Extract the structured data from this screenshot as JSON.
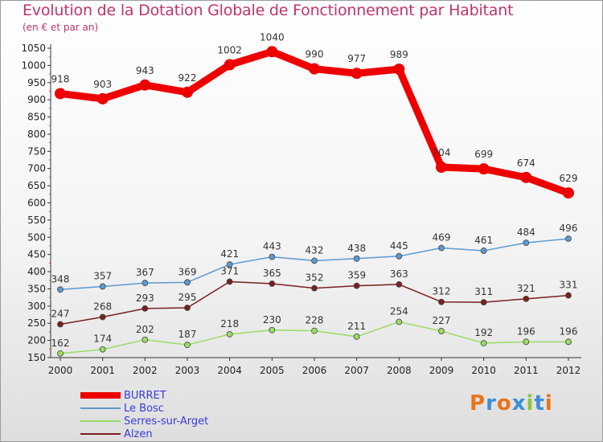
{
  "title": "Evolution de la Dotation Globale de Fonctionnement par Habitant",
  "subtitle": "(en € et par an)",
  "logo": {
    "text": "Proxiti",
    "colors": [
      "#e8741c",
      "#3a8fd6",
      "#e8741c",
      "#3a8fd6",
      "#8cc43c",
      "#3a8fd6",
      "#e8741c"
    ]
  },
  "chart_data": {
    "type": "line",
    "x": [
      "2000",
      "2001",
      "2002",
      "2003",
      "2004",
      "2005",
      "2006",
      "2007",
      "2008",
      "2009",
      "2010",
      "2011",
      "2012"
    ],
    "ylim": [
      150,
      1050
    ],
    "yticks": [
      150,
      200,
      250,
      300,
      350,
      400,
      450,
      500,
      550,
      600,
      650,
      700,
      750,
      800,
      850,
      900,
      950,
      1000,
      1050
    ],
    "grid": false,
    "legend_position": "bottom-left",
    "series": [
      {
        "name": "BURRET",
        "color": "#ee0000",
        "values": [
          918,
          903,
          943,
          922,
          1002,
          1040,
          990,
          977,
          989,
          704,
          699,
          674,
          629
        ]
      },
      {
        "name": "Le Bosc",
        "color": "#5b9bd1",
        "values": [
          348,
          357,
          367,
          369,
          421,
          443,
          432,
          438,
          445,
          469,
          461,
          484,
          496
        ]
      },
      {
        "name": "Serres-sur-Arget",
        "color": "#99dd66",
        "values": [
          162,
          174,
          202,
          187,
          218,
          230,
          228,
          211,
          254,
          227,
          192,
          196,
          196
        ]
      },
      {
        "name": "Alzen",
        "color": "#7a1f1f",
        "values": [
          247,
          268,
          293,
          295,
          371,
          365,
          352,
          359,
          363,
          312,
          311,
          321,
          331
        ]
      }
    ]
  }
}
